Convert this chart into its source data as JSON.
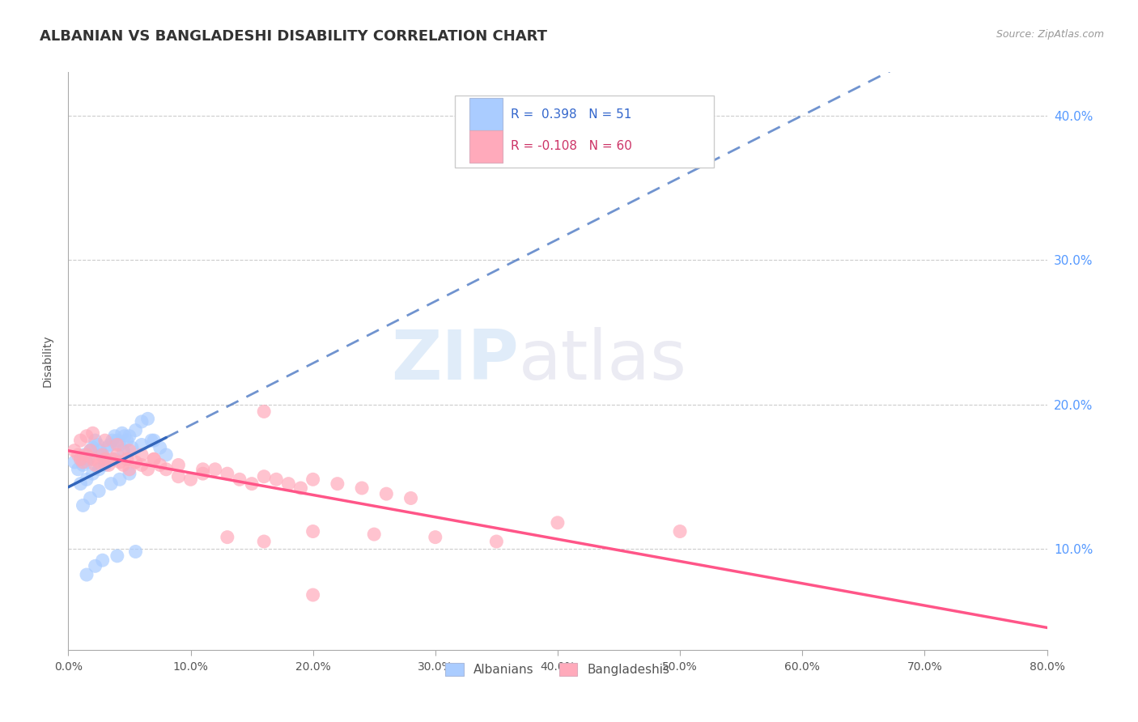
{
  "title": "ALBANIAN VS BANGLADESHI DISABILITY CORRELATION CHART",
  "source": "Source: ZipAtlas.com",
  "ylabel": "Disability",
  "watermark_zip": "ZIP",
  "watermark_atlas": "atlas",
  "r_albanians": 0.398,
  "n_albanians": 51,
  "r_bangladeshis": -0.108,
  "n_bangladeshis": 60,
  "xlim": [
    0.0,
    0.8
  ],
  "ylim": [
    0.03,
    0.43
  ],
  "xticks": [
    0.0,
    0.1,
    0.2,
    0.3,
    0.4,
    0.5,
    0.6,
    0.7,
    0.8
  ],
  "yticks_right": [
    0.1,
    0.2,
    0.3,
    0.4
  ],
  "color_albanians": "#aaccff",
  "color_bangladeshis": "#ffaabb",
  "line_color_albanians": "#3366bb",
  "line_color_bangladeshis": "#ff5588",
  "background_color": "#ffffff",
  "grid_color": "#cccccc",
  "albanians_x": [
    0.005,
    0.008,
    0.01,
    0.012,
    0.013,
    0.015,
    0.016,
    0.018,
    0.02,
    0.022,
    0.024,
    0.026,
    0.028,
    0.03,
    0.032,
    0.034,
    0.036,
    0.038,
    0.04,
    0.042,
    0.044,
    0.046,
    0.048,
    0.05,
    0.055,
    0.06,
    0.065,
    0.07,
    0.075,
    0.08,
    0.01,
    0.015,
    0.02,
    0.025,
    0.03,
    0.038,
    0.045,
    0.052,
    0.06,
    0.068,
    0.012,
    0.018,
    0.025,
    0.035,
    0.042,
    0.05,
    0.015,
    0.022,
    0.028,
    0.04,
    0.055
  ],
  "albanians_y": [
    0.16,
    0.155,
    0.162,
    0.158,
    0.165,
    0.16,
    0.162,
    0.168,
    0.17,
    0.175,
    0.172,
    0.168,
    0.165,
    0.162,
    0.17,
    0.172,
    0.175,
    0.178,
    0.175,
    0.172,
    0.18,
    0.178,
    0.175,
    0.178,
    0.182,
    0.188,
    0.19,
    0.175,
    0.17,
    0.165,
    0.145,
    0.148,
    0.152,
    0.155,
    0.158,
    0.162,
    0.168,
    0.17,
    0.172,
    0.175,
    0.13,
    0.135,
    0.14,
    0.145,
    0.148,
    0.152,
    0.082,
    0.088,
    0.092,
    0.095,
    0.098
  ],
  "bangladeshis_x": [
    0.005,
    0.008,
    0.01,
    0.012,
    0.015,
    0.018,
    0.02,
    0.022,
    0.025,
    0.028,
    0.03,
    0.033,
    0.036,
    0.04,
    0.042,
    0.045,
    0.048,
    0.05,
    0.055,
    0.06,
    0.065,
    0.07,
    0.075,
    0.08,
    0.09,
    0.1,
    0.11,
    0.12,
    0.13,
    0.14,
    0.15,
    0.16,
    0.17,
    0.18,
    0.19,
    0.2,
    0.22,
    0.24,
    0.26,
    0.28,
    0.01,
    0.015,
    0.02,
    0.03,
    0.04,
    0.05,
    0.06,
    0.07,
    0.09,
    0.11,
    0.13,
    0.16,
    0.2,
    0.25,
    0.3,
    0.35,
    0.4,
    0.5,
    0.16,
    0.2
  ],
  "bangladeshis_y": [
    0.168,
    0.165,
    0.162,
    0.16,
    0.165,
    0.168,
    0.162,
    0.158,
    0.16,
    0.165,
    0.162,
    0.158,
    0.162,
    0.165,
    0.16,
    0.158,
    0.162,
    0.155,
    0.16,
    0.158,
    0.155,
    0.162,
    0.158,
    0.155,
    0.15,
    0.148,
    0.152,
    0.155,
    0.152,
    0.148,
    0.145,
    0.15,
    0.148,
    0.145,
    0.142,
    0.148,
    0.145,
    0.142,
    0.138,
    0.135,
    0.175,
    0.178,
    0.18,
    0.175,
    0.172,
    0.168,
    0.165,
    0.162,
    0.158,
    0.155,
    0.108,
    0.105,
    0.112,
    0.11,
    0.108,
    0.105,
    0.118,
    0.112,
    0.195,
    0.068
  ]
}
